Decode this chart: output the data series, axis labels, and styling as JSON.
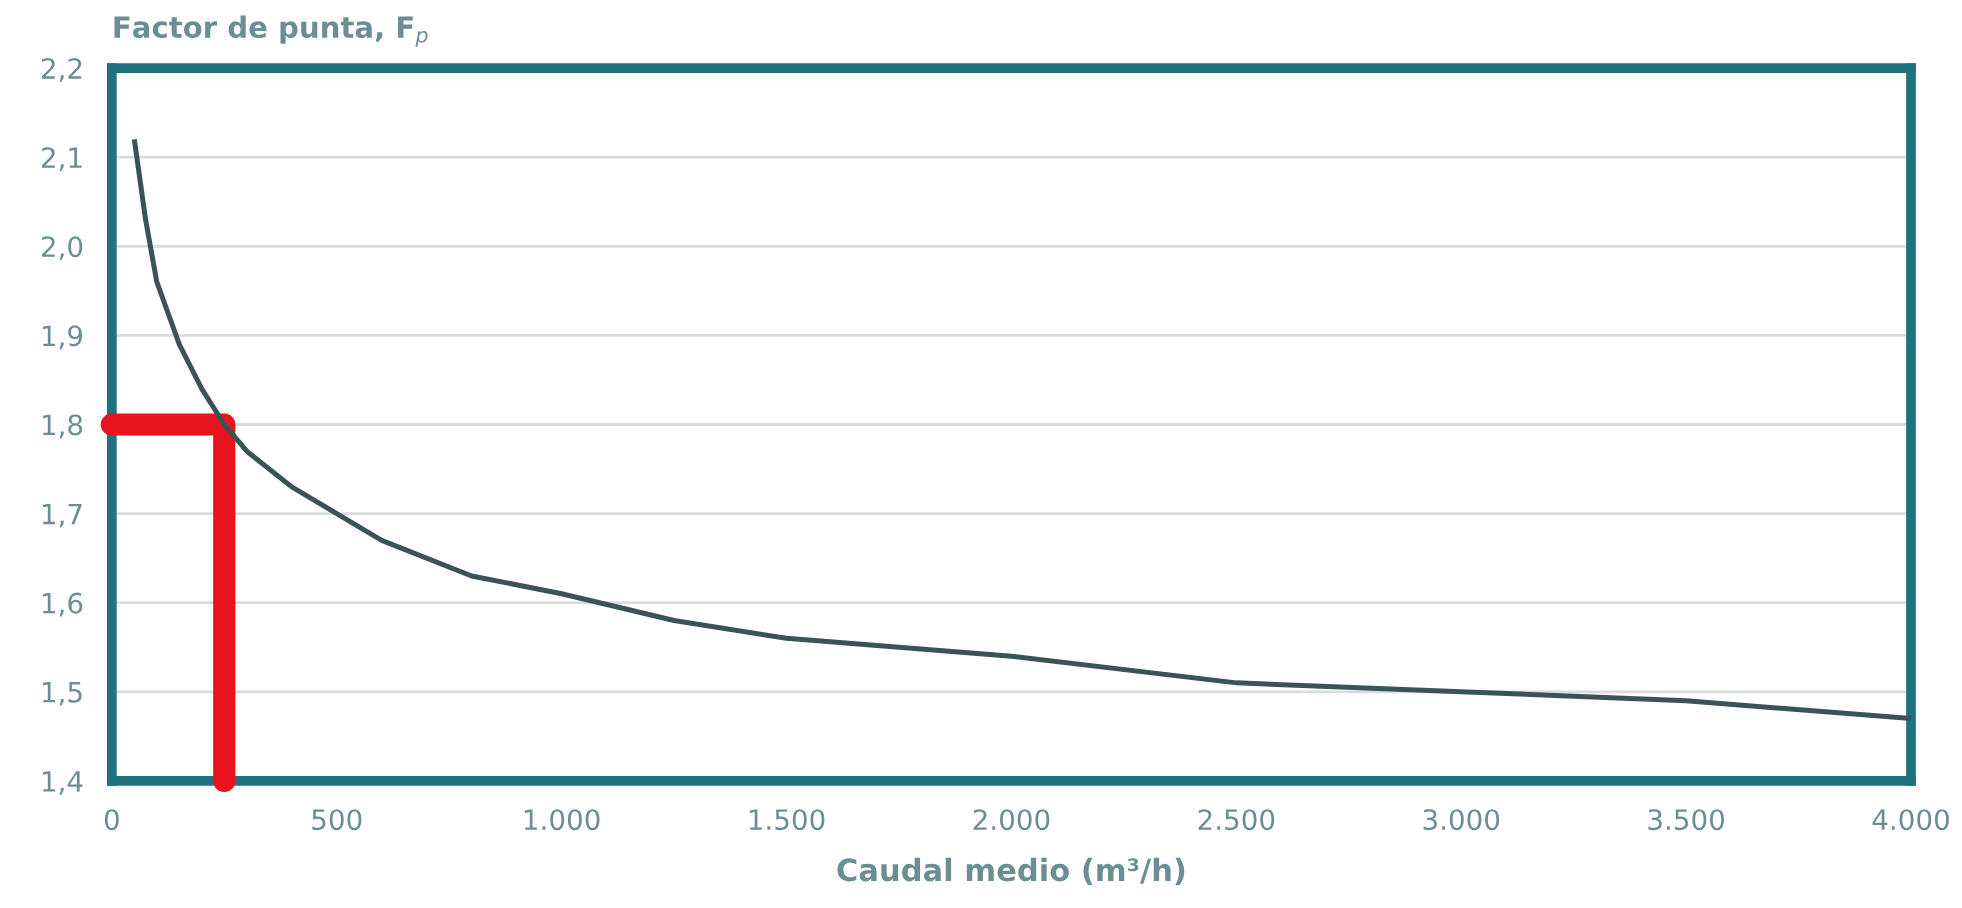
{
  "chart_data": {
    "type": "line",
    "ylabel": "Factor de punta, F$_{p}$",
    "xlabel": "Caudal medio (m³/h)",
    "series": [
      {
        "color": "#3a5357",
        "x": [
          50,
          75,
          100,
          150,
          200,
          250,
          300,
          400,
          500,
          600,
          800,
          1000,
          1250,
          1500,
          2000,
          2500,
          3000,
          3500,
          4000
        ],
        "values": [
          2.12,
          2.03,
          1.96,
          1.89,
          1.84,
          1.8,
          1.77,
          1.73,
          1.7,
          1.67,
          1.63,
          1.61,
          1.58,
          1.56,
          1.54,
          1.51,
          1.5,
          1.49,
          1.47
        ]
      },
      {
        "color": "#e8141c",
        "x": [
          0,
          250,
          250
        ],
        "values": [
          1.8,
          1.8,
          1.4
        ]
      }
    ],
    "xlim": [
      0,
      4000
    ],
    "xticks": [
      0,
      500,
      {
        "value": 1000,
        "label": "1.000"
      },
      {
        "value": 1500,
        "label": "1.500"
      },
      {
        "value": 2000,
        "label": "2.000"
      },
      {
        "value": 2500,
        "label": "2.500"
      },
      {
        "value": 3000,
        "label": "3.000"
      },
      {
        "value": 3500,
        "label": "3.500"
      },
      {
        "value": 4000,
        "label": "4.000"
      }
    ],
    "ylim": [
      1.4,
      2.2
    ],
    "yticks": [
      {
        "value": 1.4,
        "label": "1,4"
      },
      {
        "value": 1.5,
        "label": "1,5"
      },
      {
        "value": 1.6,
        "label": "1,6"
      },
      {
        "value": 1.7,
        "label": "1,7"
      },
      {
        "value": 1.8,
        "label": "1,8"
      },
      {
        "value": 1.9,
        "label": "1,9"
      },
      {
        "value": 2.0,
        "label": "2,0"
      },
      {
        "value": 2.1,
        "label": "2,1"
      },
      {
        "value": 2.2,
        "label": "2,2"
      }
    ],
    "grid": "y",
    "marker": "none",
    "line_style": "solid"
  }
}
